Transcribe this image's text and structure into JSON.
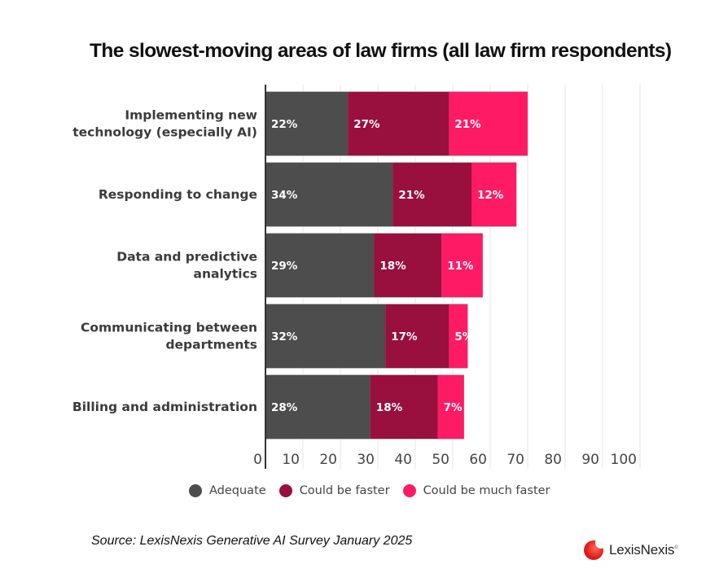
{
  "chart_data": {
    "type": "bar",
    "orientation": "horizontal",
    "stacked": true,
    "title": "The slowest-moving areas of law firms (all law firm respondents)",
    "categories": [
      [
        "Implementing new",
        "technology (especially AI)"
      ],
      [
        "Responding to change"
      ],
      [
        "Data and predictive",
        "analytics"
      ],
      [
        "Communicating between",
        "departments"
      ],
      [
        "Billing and administration"
      ]
    ],
    "series": [
      {
        "name": "Adequate",
        "color": "#4d4d4d",
        "values": [
          22,
          34,
          29,
          32,
          28
        ]
      },
      {
        "name": "Could be faster",
        "color": "#990f3d",
        "values": [
          27,
          21,
          18,
          17,
          18
        ]
      },
      {
        "name": "Could be much faster",
        "color": "#ff1a66",
        "values": [
          21,
          12,
          11,
          5,
          7
        ]
      }
    ],
    "data_label_suffix": "%",
    "xlabel": "",
    "ylabel": "",
    "xlim": [
      0,
      100
    ],
    "xticks": [
      "0",
      "10",
      "20",
      "30",
      "40",
      "50",
      "60",
      "70",
      "80",
      "90",
      "100"
    ],
    "grid": true,
    "legend_position": "bottom-center"
  },
  "source": "Source: LexisNexis Generative AI Survey January 2025",
  "logo": {
    "name": "LexisNexis",
    "reg": "®"
  }
}
